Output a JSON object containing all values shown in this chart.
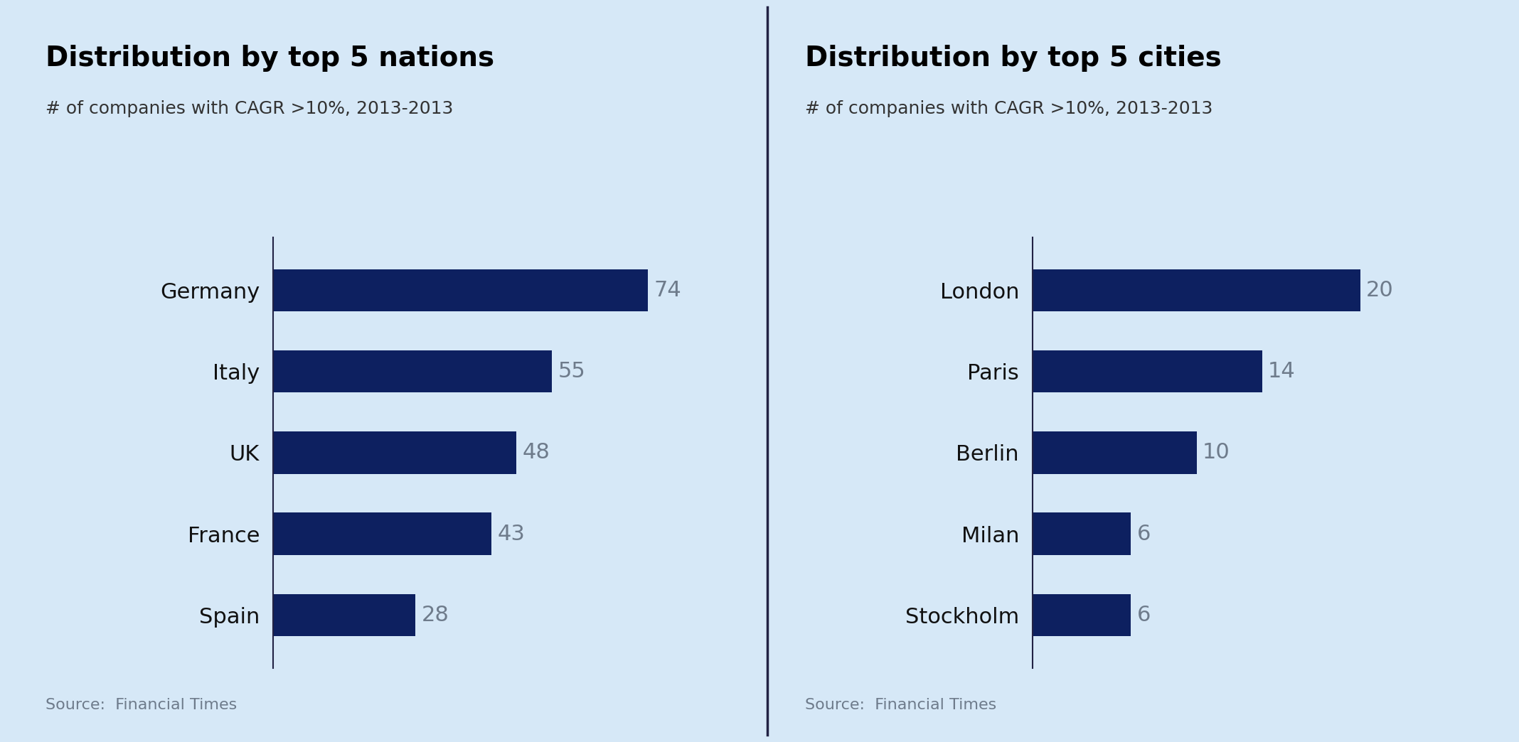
{
  "left_title": "Distribution by top 5 nations",
  "left_subtitle": "# of companies with CAGR >10%, 2013-2013",
  "left_categories": [
    "Spain",
    "France",
    "UK",
    "Italy",
    "Germany"
  ],
  "left_values": [
    28,
    43,
    48,
    55,
    74
  ],
  "right_title": "Distribution by top 5 cities",
  "right_subtitle": "# of companies with CAGR >10%, 2013-2013",
  "right_categories": [
    "Stockholm",
    "Milan",
    "Berlin",
    "Paris",
    "London"
  ],
  "right_values": [
    6,
    6,
    10,
    14,
    20
  ],
  "bar_color": "#0d2060",
  "background_color": "#d6e8f7",
  "source_text": "Source:  Financial Times",
  "source_color": "#6e7b8b",
  "title_color": "#000000",
  "subtitle_color": "#333333",
  "value_color": "#6e7b8b",
  "divider_color": "#222244",
  "axis_line_color": "#222244",
  "left_xlim": [
    0,
    90
  ],
  "right_xlim": [
    0,
    26
  ],
  "title_fontsize": 28,
  "subtitle_fontsize": 18,
  "label_fontsize": 22,
  "value_fontsize": 22,
  "source_fontsize": 16
}
